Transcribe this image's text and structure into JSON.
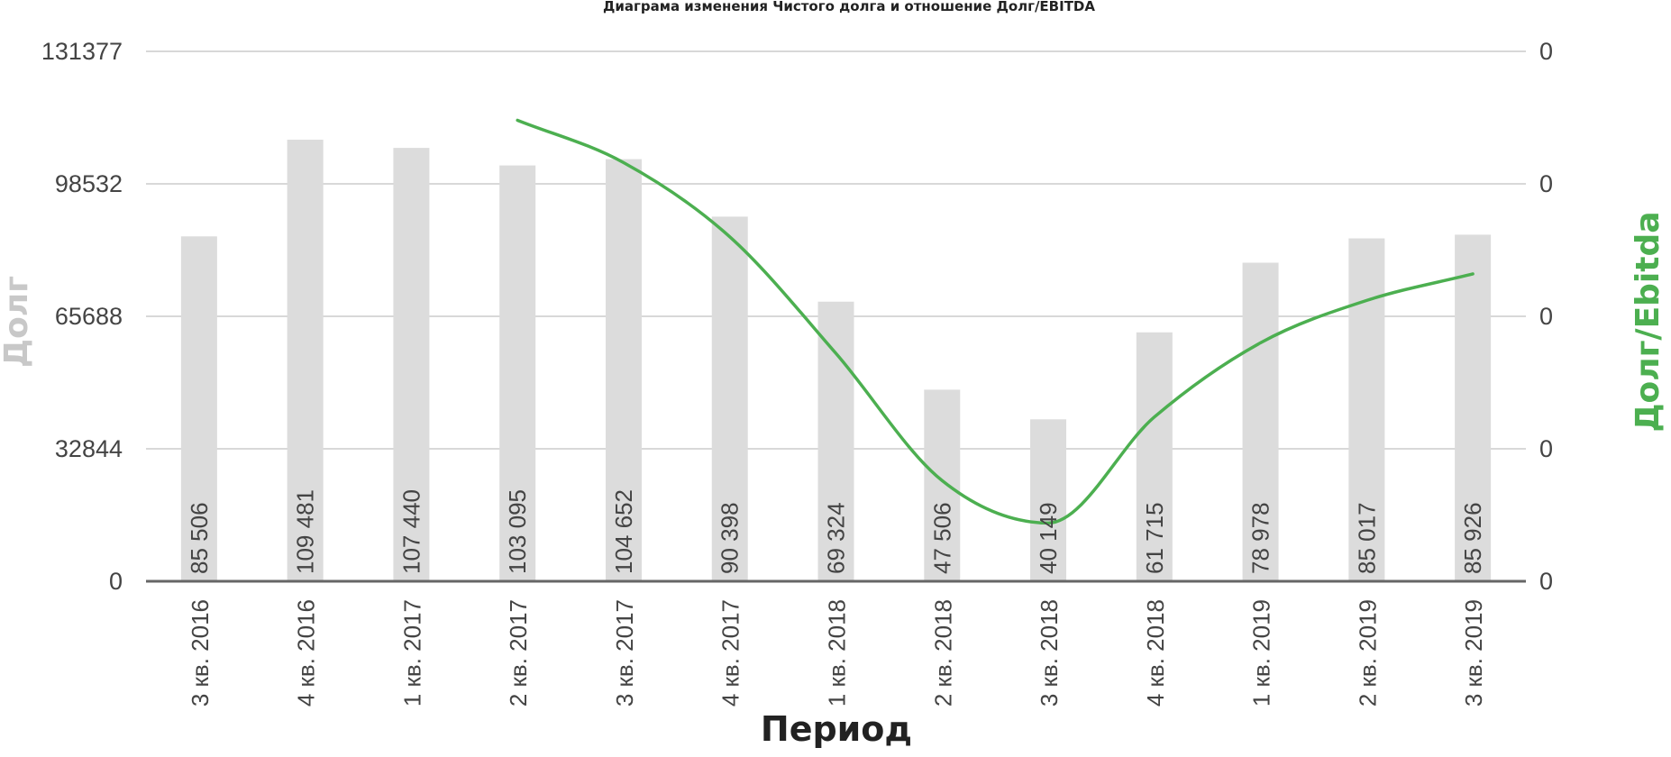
{
  "chart_data": {
    "type": "bar",
    "title": "Диаграма изменения Чистого долга и отношение Долг/EBITDA",
    "xlabel": "Период",
    "ylabel": "Долг",
    "ylabel2": "Долг/Ebitda",
    "categories": [
      "3 кв. 2016",
      "4 кв. 2016",
      "1 кв. 2017",
      "2 кв. 2017",
      "3 кв. 2017",
      "4 кв. 2017",
      "1 кв. 2018",
      "2 кв. 2018",
      "3 кв. 2018",
      "4 кв. 2018",
      "1 кв. 2019",
      "2 кв. 2019",
      "3 кв. 2019"
    ],
    "series": [
      {
        "type": "bar",
        "values": [
          85506,
          109481,
          107440,
          103095,
          104652,
          90398,
          69324,
          47506,
          40149,
          61715,
          78978,
          85017,
          85926
        ],
        "labels": [
          "85 506",
          "109 481",
          "107 440",
          "103 095",
          "104 652",
          "90 398",
          "69 324",
          "47 506",
          "40 149",
          "61 715",
          "78 978",
          "85 017",
          "85 926"
        ],
        "color": "#dcdcdc"
      },
      {
        "type": "line",
        "axis": "right",
        "smooth": true,
        "color": "#4caf50",
        "values": [
          null,
          null,
          null,
          0.87,
          0.79,
          0.65,
          0.43,
          0.19,
          0.11,
          0.31,
          0.45,
          0.53,
          0.58
        ]
      }
    ],
    "yticks": [
      "131377",
      "98532",
      "65688",
      "32844",
      "0"
    ],
    "ylim": [
      0,
      131377
    ],
    "y2ticks": [
      "0",
      "0",
      "0",
      "0",
      "0"
    ],
    "y2lim": [
      0,
      1
    ],
    "grid": true,
    "colors": {
      "bar": "#dcdcdc",
      "line": "#4caf50",
      "axis": "#666666",
      "grid": "#cccccc",
      "ylabel": "#c8c8c8"
    }
  }
}
